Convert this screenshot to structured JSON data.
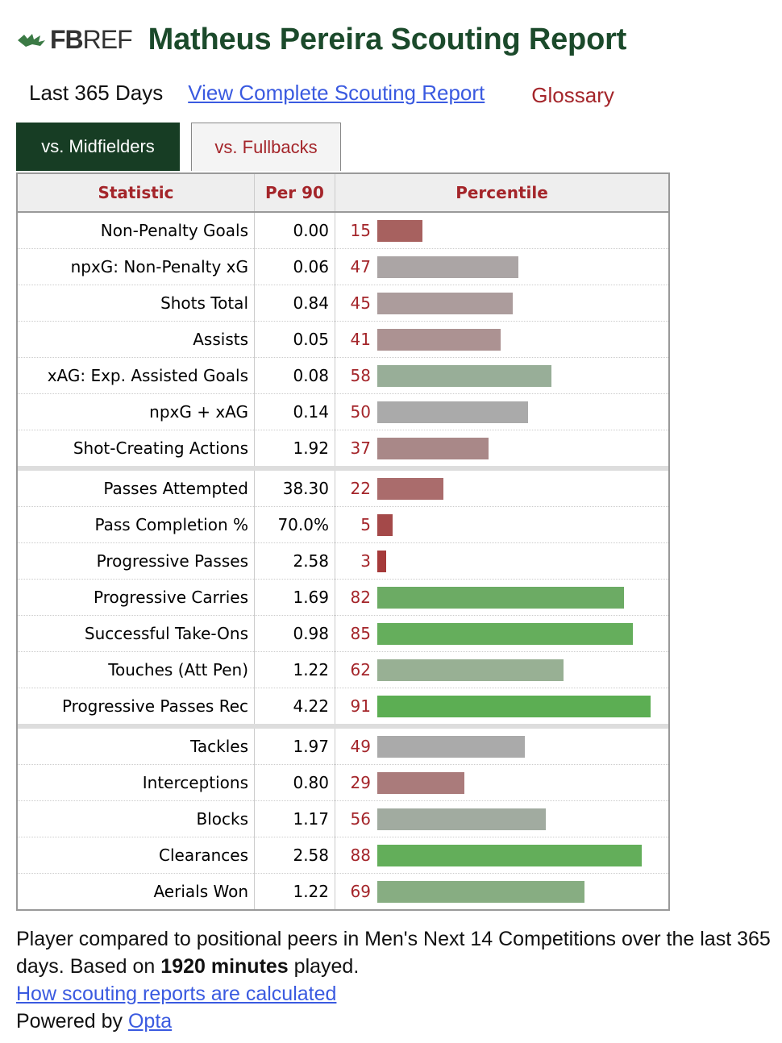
{
  "header": {
    "logo_text_bold": "FB",
    "logo_text_light": "REF",
    "title": "Matheus Pereira Scouting Report"
  },
  "subnav": {
    "period": "Last 365 Days",
    "complete_link": "View Complete Scouting Report",
    "glossary": "Glossary"
  },
  "tabs": [
    {
      "label": "vs. Midfielders",
      "active": true
    },
    {
      "label": "vs. Fullbacks",
      "active": false
    }
  ],
  "table": {
    "headers": [
      "Statistic",
      "Per 90",
      "Percentile"
    ],
    "rows": [
      {
        "stat": "Non-Penalty Goals",
        "per90": "0.00",
        "pct": 15,
        "color": "#a7615f"
      },
      {
        "stat": "npxG: Non-Penalty xG",
        "per90": "0.06",
        "pct": 47,
        "color": "#aba5a5"
      },
      {
        "stat": "Shots Total",
        "per90": "0.84",
        "pct": 45,
        "color": "#ac9c9c"
      },
      {
        "stat": "Assists",
        "per90": "0.05",
        "pct": 41,
        "color": "#ac9292"
      },
      {
        "stat": "xAG: Exp. Assisted Goals",
        "per90": "0.08",
        "pct": 58,
        "color": "#98ae98"
      },
      {
        "stat": "npxG + xAG",
        "per90": "0.14",
        "pct": 50,
        "color": "#aaaaaa"
      },
      {
        "stat": "Shot-Creating Actions",
        "per90": "1.92",
        "pct": 37,
        "color": "#a98888"
      },
      {
        "stat": "Passes Attempted",
        "per90": "38.30",
        "pct": 22,
        "color": "#aa6c6c"
      },
      {
        "stat": "Pass Completion %",
        "per90": "70.0%",
        "pct": 5,
        "color": "#a44949"
      },
      {
        "stat": "Progressive Passes",
        "per90": "2.58",
        "pct": 3,
        "color": "#a53a3a"
      },
      {
        "stat": "Progressive Carries",
        "per90": "1.69",
        "pct": 82,
        "color": "#6cab64"
      },
      {
        "stat": "Successful Take-Ons",
        "per90": "0.98",
        "pct": 85,
        "color": "#65ae5c"
      },
      {
        "stat": "Touches (Att Pen)",
        "per90": "1.22",
        "pct": 62,
        "color": "#98b094"
      },
      {
        "stat": "Progressive Passes Rec",
        "per90": "4.22",
        "pct": 91,
        "color": "#5cae53"
      },
      {
        "stat": "Tackles",
        "per90": "1.97",
        "pct": 49,
        "color": "#aaaaaa"
      },
      {
        "stat": "Interceptions",
        "per90": "0.80",
        "pct": 29,
        "color": "#aa7b7b"
      },
      {
        "stat": "Blocks",
        "per90": "1.17",
        "pct": 56,
        "color": "#a1aba0"
      },
      {
        "stat": "Clearances",
        "per90": "2.58",
        "pct": 88,
        "color": "#63ae5a"
      },
      {
        "stat": "Aerials Won",
        "per90": "1.22",
        "pct": 69,
        "color": "#87ad82"
      }
    ],
    "group_ends": [
      6,
      13
    ]
  },
  "footer": {
    "line1": "Player compared to positional peers in Men's Next 14 Competitions over the last 365 days. Based on ",
    "minutes_bold": "1920 minutes",
    "line1_end": " played.",
    "calc_link": "How scouting reports are calculated",
    "powered_prefix": "Powered by ",
    "opta_link": "Opta"
  }
}
